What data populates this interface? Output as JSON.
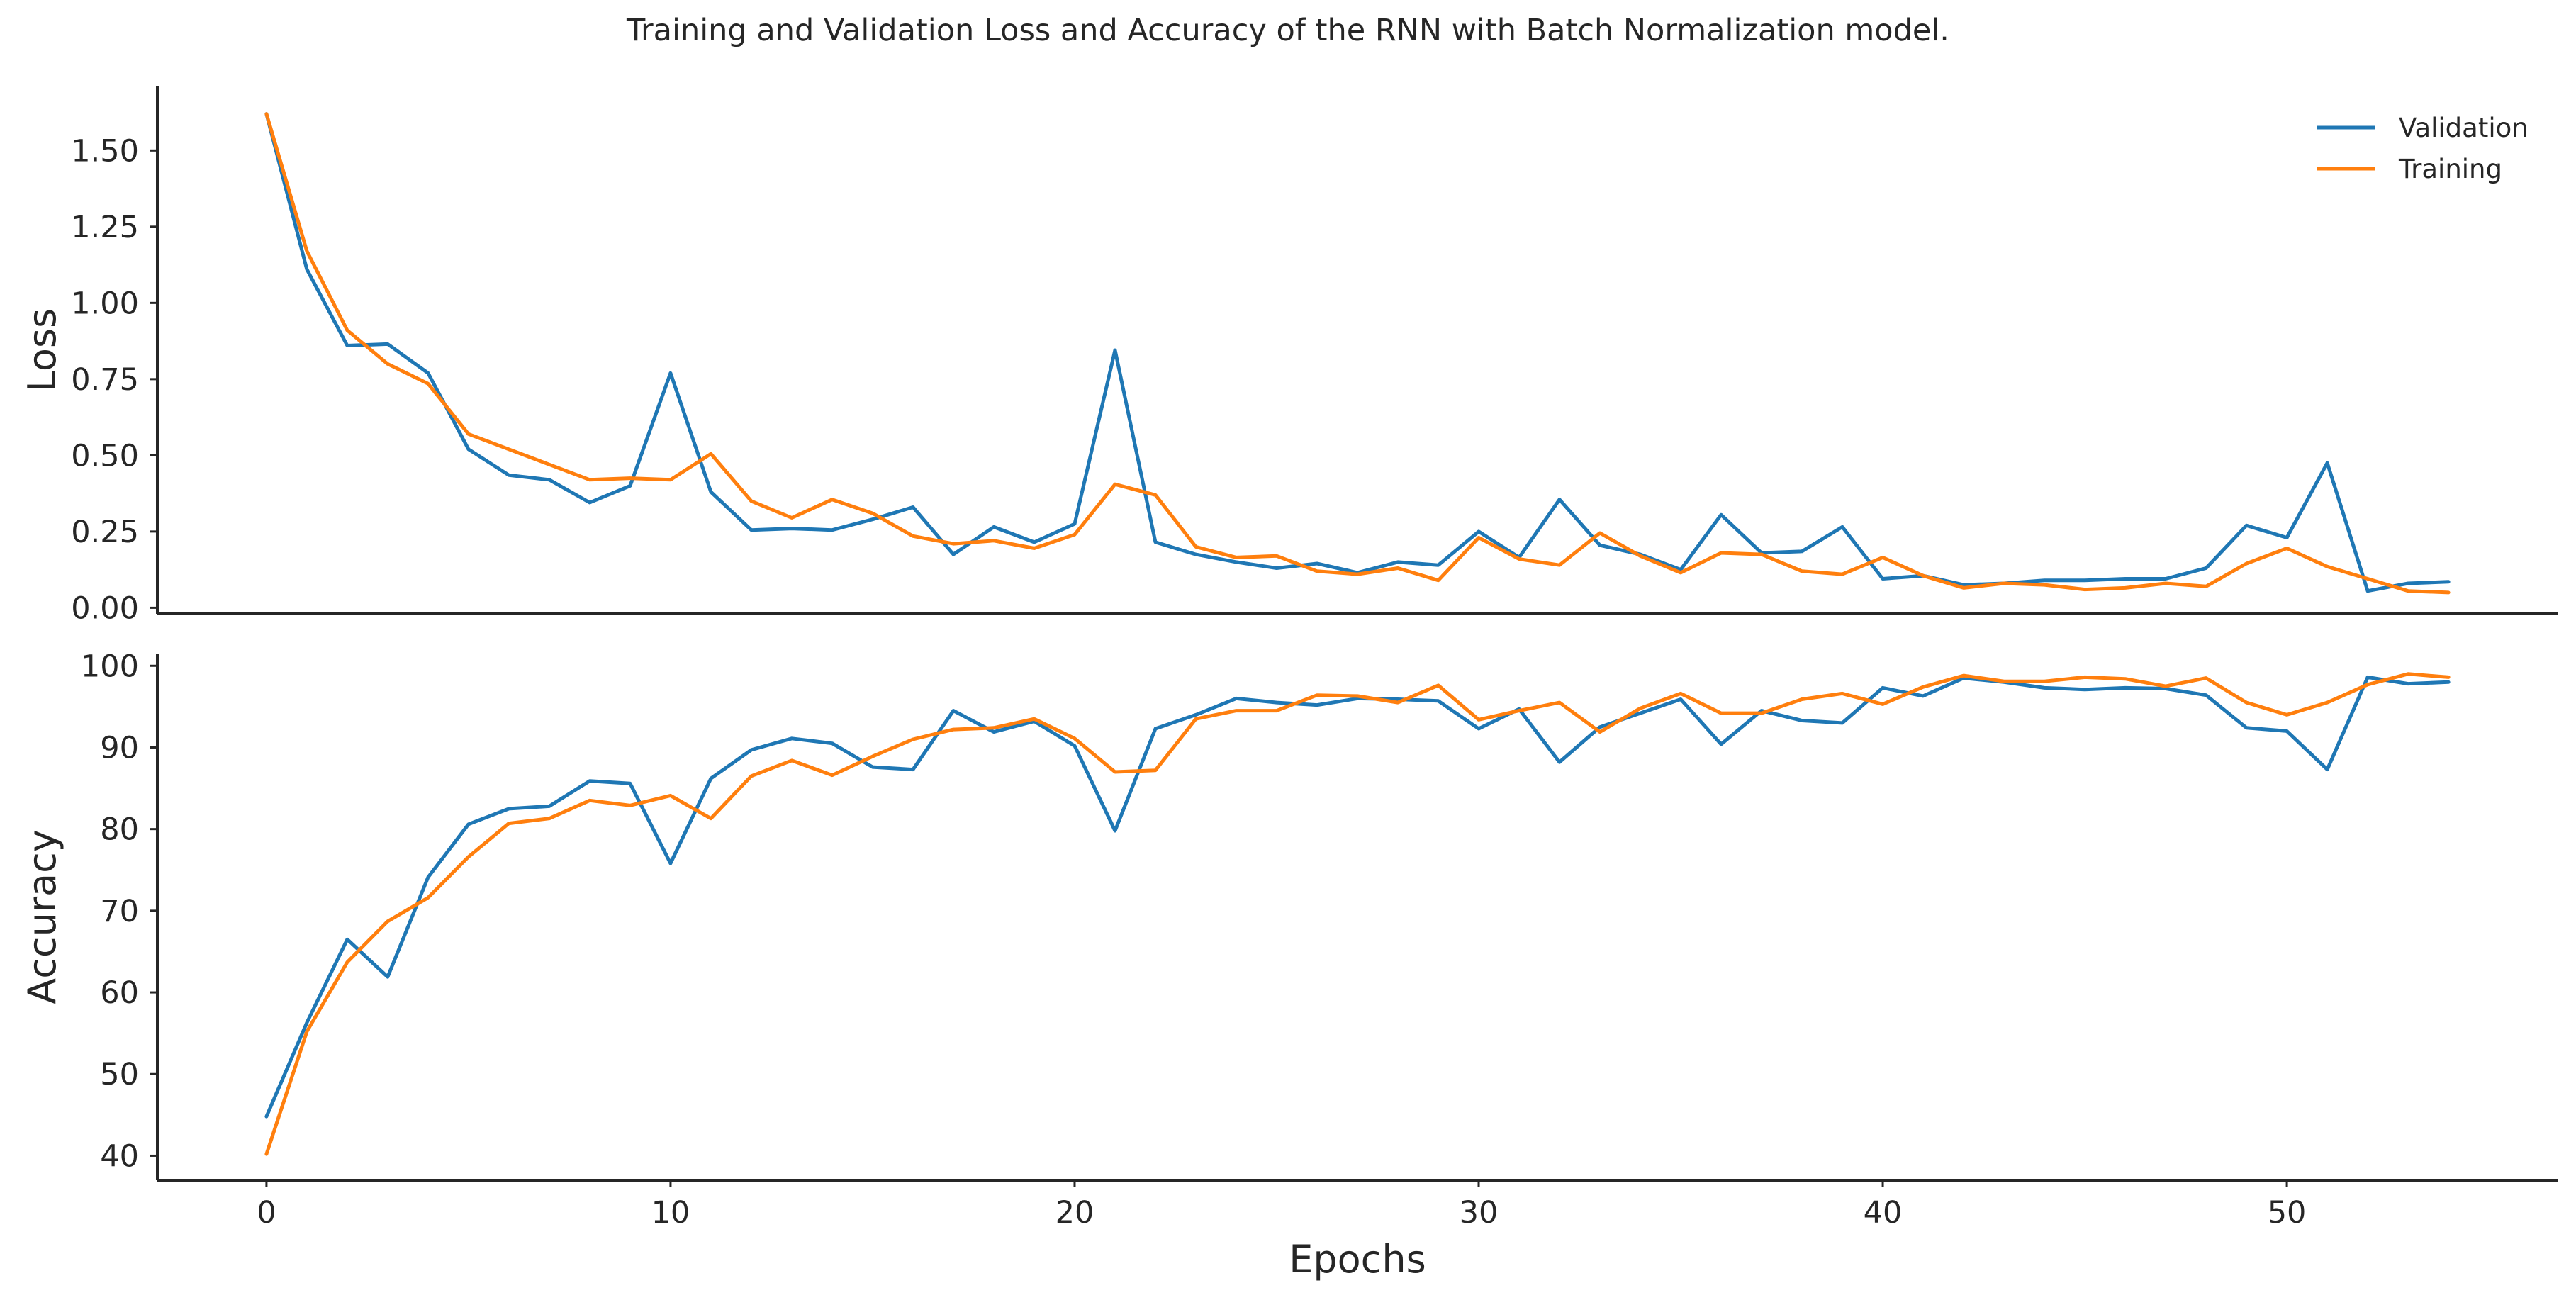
{
  "title": "Training and Validation Loss and Accuracy of the RNN with Batch Normalization model.",
  "colors": {
    "validation": "#1f77b4",
    "training": "#ff7f0e",
    "axis": "#262626"
  },
  "chart_data": [
    {
      "type": "line",
      "ylabel": "Loss",
      "xlabel": "",
      "xlim": [
        -2.7,
        56.7
      ],
      "ylim": [
        -0.02,
        1.71
      ],
      "yticks": [
        0.0,
        0.25,
        0.5,
        0.75,
        1.0,
        1.25,
        1.5
      ],
      "ytick_labels": [
        "0.00",
        "0.25",
        "0.50",
        "0.75",
        "1.00",
        "1.25",
        "1.50"
      ],
      "grid": false,
      "legend": "top-right",
      "series": [
        {
          "name": "Validation",
          "color": "#1f77b4",
          "values": [
            1.62,
            1.11,
            0.86,
            0.865,
            0.77,
            0.52,
            0.435,
            0.42,
            0.345,
            0.4,
            0.77,
            0.38,
            0.255,
            0.26,
            0.255,
            0.29,
            0.33,
            0.175,
            0.265,
            0.215,
            0.275,
            0.845,
            0.215,
            0.175,
            0.15,
            0.13,
            0.145,
            0.115,
            0.15,
            0.14,
            0.25,
            0.165,
            0.355,
            0.205,
            0.175,
            0.125,
            0.305,
            0.18,
            0.185,
            0.265,
            0.095,
            0.105,
            0.075,
            0.08,
            0.09,
            0.09,
            0.095,
            0.095,
            0.13,
            0.27,
            0.23,
            0.475,
            0.055,
            0.08,
            0.085
          ]
        },
        {
          "name": "Training",
          "color": "#ff7f0e",
          "values": [
            1.62,
            1.17,
            0.91,
            0.8,
            0.735,
            0.57,
            0.52,
            0.47,
            0.42,
            0.425,
            0.42,
            0.505,
            0.35,
            0.295,
            0.355,
            0.31,
            0.235,
            0.21,
            0.22,
            0.195,
            0.24,
            0.405,
            0.37,
            0.2,
            0.165,
            0.17,
            0.12,
            0.11,
            0.13,
            0.09,
            0.23,
            0.16,
            0.14,
            0.245,
            0.17,
            0.115,
            0.18,
            0.175,
            0.12,
            0.11,
            0.165,
            0.105,
            0.065,
            0.08,
            0.075,
            0.06,
            0.065,
            0.08,
            0.07,
            0.145,
            0.195,
            0.135,
            0.095,
            0.055,
            0.05
          ]
        }
      ]
    },
    {
      "type": "line",
      "ylabel": "Accuracy",
      "xlabel": "Epochs",
      "xlim": [
        -2.7,
        56.7
      ],
      "ylim": [
        37.0,
        101.5
      ],
      "yticks": [
        40,
        50,
        60,
        70,
        80,
        90,
        100
      ],
      "ytick_labels": [
        "40",
        "50",
        "60",
        "70",
        "80",
        "90",
        "100"
      ],
      "xticks": [
        0,
        10,
        20,
        30,
        40,
        50
      ],
      "xtick_labels": [
        "0",
        "10",
        "20",
        "30",
        "40",
        "50"
      ],
      "grid": false,
      "series": [
        {
          "name": "Validation",
          "color": "#1f77b4",
          "values": [
            44.8,
            56.3,
            66.5,
            61.9,
            74.1,
            80.6,
            82.5,
            82.8,
            85.9,
            85.6,
            75.8,
            86.2,
            89.7,
            91.1,
            90.5,
            87.6,
            87.3,
            94.5,
            91.9,
            93.2,
            90.2,
            79.8,
            92.3,
            94.0,
            96.0,
            95.5,
            95.2,
            96.0,
            95.9,
            95.7,
            92.3,
            94.7,
            88.2,
            92.5,
            94.2,
            95.9,
            90.4,
            94.5,
            93.3,
            93.0,
            97.3,
            96.3,
            98.5,
            98.0,
            97.3,
            97.1,
            97.3,
            97.2,
            96.4,
            92.4,
            92.0,
            87.3,
            98.6,
            97.8,
            98.0
          ]
        },
        {
          "name": "Training",
          "color": "#ff7f0e",
          "values": [
            40.2,
            55.2,
            63.7,
            68.7,
            71.6,
            76.6,
            80.7,
            81.3,
            83.5,
            82.9,
            84.1,
            81.3,
            86.5,
            88.4,
            86.6,
            88.9,
            91.0,
            92.2,
            92.4,
            93.5,
            91.1,
            87.0,
            87.2,
            93.5,
            94.5,
            94.5,
            96.4,
            96.3,
            95.5,
            97.6,
            93.4,
            94.5,
            95.5,
            91.9,
            94.8,
            96.6,
            94.2,
            94.2,
            95.9,
            96.6,
            95.3,
            97.4,
            98.8,
            98.1,
            98.1,
            98.6,
            98.4,
            97.5,
            98.5,
            95.5,
            94.0,
            95.5,
            97.7,
            99.0,
            98.6
          ]
        }
      ]
    }
  ]
}
